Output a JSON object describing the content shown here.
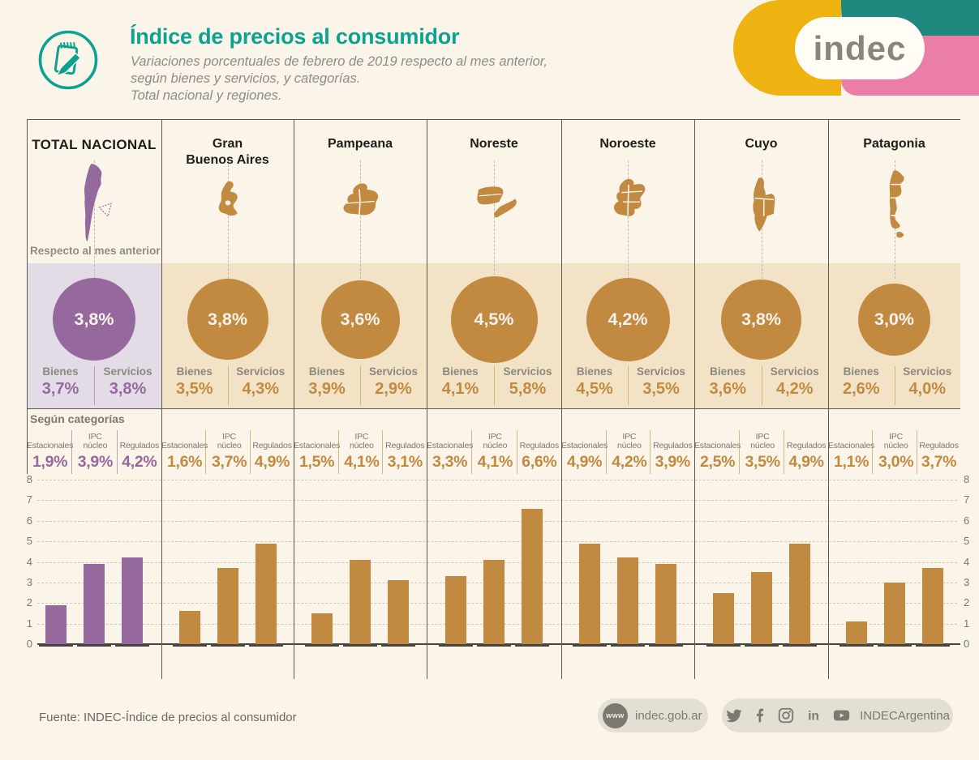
{
  "colors": {
    "teal": "#0ba292",
    "purple": "#96699e",
    "purple_band": "#e3dce7",
    "tan": "#c28a41",
    "tan_band": "#f2e3c6",
    "cream": "#faf4e9",
    "dark_text": "#1d1d1b",
    "gray_text": "#8b8880",
    "logo_yellow": "#eeb211",
    "logo_teal": "#1f897d",
    "logo_pink": "#ea7ea6"
  },
  "header": {
    "icon": "notepad-pencil-icon",
    "title": "Índice de precios al consumidor",
    "subtitle_lines": [
      "Variaciones porcentuales de febrero de 2019 respecto al mes anterior,",
      "según bienes y servicios, y categorías.",
      "Total nacional y regiones."
    ],
    "logo_text": "indec"
  },
  "section_labels": {
    "respecto": "Respecto al mes anterior",
    "segun": "Según categorías",
    "bienes_label": "Bienes",
    "servicios_label": "Servicios"
  },
  "category_labels": [
    "Estacionales",
    "IPC núcleo",
    "Regulados"
  ],
  "regions": [
    {
      "name": "TOTAL NACIONAL",
      "name_lines": [
        "TOTAL NACIONAL"
      ],
      "map_icon": "argentina-map",
      "headline": "3,8%",
      "bienes": "3,7%",
      "servicios": "3,8%",
      "cat_values": [
        "1,9%",
        "3,9%",
        "4,2%"
      ]
    },
    {
      "name": "Gran Buenos Aires",
      "name_lines": [
        "Gran",
        "Buenos Aires"
      ],
      "map_icon": "gran-buenos-aires-map",
      "headline": "3,8%",
      "bienes": "3,5%",
      "servicios": "4,3%",
      "cat_values": [
        "1,6%",
        "3,7%",
        "4,9%"
      ]
    },
    {
      "name": "Pampeana",
      "name_lines": [
        "Pampeana"
      ],
      "map_icon": "pampeana-map",
      "headline": "3,6%",
      "bienes": "3,9%",
      "servicios": "2,9%",
      "cat_values": [
        "1,5%",
        "4,1%",
        "3,1%"
      ]
    },
    {
      "name": "Noreste",
      "name_lines": [
        "Noreste"
      ],
      "map_icon": "noreste-map",
      "headline": "4,5%",
      "bienes": "4,1%",
      "servicios": "5,8%",
      "cat_values": [
        "3,3%",
        "4,1%",
        "6,6%"
      ]
    },
    {
      "name": "Noroeste",
      "name_lines": [
        "Noroeste"
      ],
      "map_icon": "noroeste-map",
      "headline": "4,2%",
      "bienes": "4,5%",
      "servicios": "3,5%",
      "cat_values": [
        "4,9%",
        "4,2%",
        "3,9%"
      ]
    },
    {
      "name": "Cuyo",
      "name_lines": [
        "Cuyo"
      ],
      "map_icon": "cuyo-map",
      "headline": "3,8%",
      "bienes": "3,6%",
      "servicios": "4,2%",
      "cat_values": [
        "2,5%",
        "3,5%",
        "4,9%"
      ]
    },
    {
      "name": "Patagonia",
      "name_lines": [
        "Patagonia"
      ],
      "map_icon": "patagonia-map",
      "headline": "3,0%",
      "bienes": "2,6%",
      "servicios": "4,0%",
      "cat_values": [
        "1,1%",
        "3,0%",
        "3,7%"
      ]
    }
  ],
  "chart_data": {
    "type": "bar",
    "title": "Según categorías",
    "categories": [
      "Estacionales",
      "IPC núcleo",
      "Regulados"
    ],
    "groups": [
      "Total nacional",
      "Gran Buenos Aires",
      "Pampeana",
      "Noreste",
      "Noroeste",
      "Cuyo",
      "Patagonia"
    ],
    "series": [
      {
        "name": "Total nacional",
        "values": [
          1.9,
          3.9,
          4.2
        ],
        "color": "#96699e"
      },
      {
        "name": "Gran Buenos Aires",
        "values": [
          1.6,
          3.7,
          4.9
        ],
        "color": "#c28a41"
      },
      {
        "name": "Pampeana",
        "values": [
          1.5,
          4.1,
          3.1
        ],
        "color": "#c28a41"
      },
      {
        "name": "Noreste",
        "values": [
          3.3,
          4.1,
          6.6
        ],
        "color": "#c28a41"
      },
      {
        "name": "Noroeste",
        "values": [
          4.9,
          4.2,
          3.9
        ],
        "color": "#c28a41"
      },
      {
        "name": "Cuyo",
        "values": [
          2.5,
          3.5,
          4.9
        ],
        "color": "#c28a41"
      },
      {
        "name": "Patagonia",
        "values": [
          1.1,
          3.0,
          3.7
        ],
        "color": "#c28a41"
      }
    ],
    "unit": "%",
    "ylim": [
      0,
      8
    ],
    "yticks": [
      0,
      1,
      2,
      3,
      4,
      5,
      6,
      7,
      8
    ],
    "grid": true,
    "y_axis_sides": "both"
  },
  "footer": {
    "source": "Fuente: INDEC-Índice de precios al consumidor",
    "www_badge": "www",
    "website": "indec.gob.ar",
    "social_icons": [
      "twitter-icon",
      "facebook-icon",
      "instagram-icon",
      "linkedin-icon",
      "youtube-icon"
    ],
    "social_handle": "INDECArgentina"
  }
}
